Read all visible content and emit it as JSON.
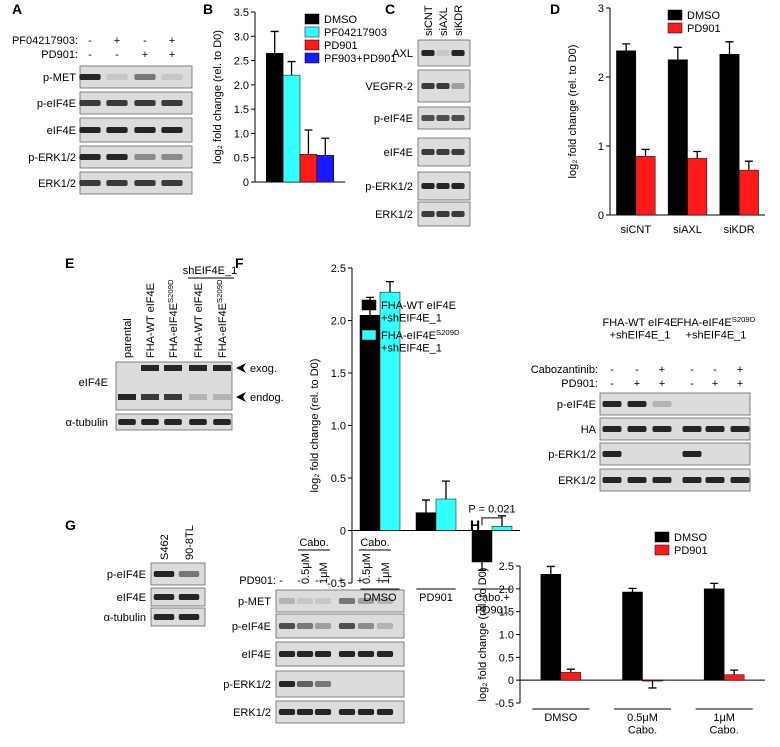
{
  "panel_labels": [
    "A",
    "B",
    "C",
    "D",
    "E",
    "F",
    "G",
    "H"
  ],
  "blot_a": {
    "treatments": [
      {
        "label": "PF04217903:",
        "signs": [
          "-",
          "+",
          "-",
          "+"
        ]
      },
      {
        "label": "PD901:",
        "signs": [
          "-",
          "-",
          "+",
          "+"
        ]
      }
    ],
    "rows": [
      "p-MET",
      "p-eIF4E",
      "eIF4E",
      "p-ERK1/2",
      "ERK1/2"
    ]
  },
  "blot_c": {
    "lanes": [
      "siCNT",
      "siAXL",
      "siKDR"
    ],
    "rows": [
      "AXL",
      "VEGFR-2",
      "p-eIF4E",
      "eIF4E",
      "p-ERK1/2",
      "ERK1/2"
    ]
  },
  "blot_e": {
    "group": "shEIF4E_1",
    "lanes": [
      "parental",
      "FHA-WT eIF4E",
      {
        "text": "FHA-eIF4E",
        "sup": "S209D"
      },
      "FHA-WT eIF4E",
      {
        "text": "FHA-eIF4E",
        "sup": "S209D"
      }
    ],
    "rows": [
      "eIF4E",
      "α-tubulin"
    ],
    "arrows": [
      "exog.",
      "endog."
    ]
  },
  "blot_f": {
    "groups": [
      [
        "FHA-WT eIF4E",
        "+shEIF4E_1"
      ],
      [
        {
          "text": "FHA-eIF4E",
          "sup": "S209D"
        },
        "+shEIF4E_1"
      ]
    ],
    "treatments": [
      {
        "label": "Cabozantinib:",
        "signs": [
          "-",
          "-",
          "+",
          "-",
          "-",
          "+"
        ]
      },
      {
        "label": "PD901:",
        "signs": [
          "-",
          "+",
          "+",
          "-",
          "+",
          "+"
        ]
      }
    ],
    "rows": [
      "p-eIF4E",
      "HA",
      "p-ERK1/2",
      "ERK1/2"
    ]
  },
  "blot_g1": {
    "lanes": [
      "S462",
      "90-8TL"
    ],
    "rows": [
      "p-eIF4E",
      "eIF4E",
      "α-tubulin"
    ]
  },
  "blot_g2": {
    "groups": [
      "Cabo.",
      "Cabo."
    ],
    "doses": [
      "0.5μM",
      "1μM",
      "0.5μM",
      "1μM"
    ],
    "treatment": {
      "label": "PD901:",
      "signs": [
        "-",
        "-",
        "-",
        "+",
        "+",
        "+"
      ]
    },
    "rows": [
      "p-MET",
      "p-eIF4E",
      "eIF4E",
      "p-ERK1/2",
      "ERK1/2"
    ]
  },
  "chart_data": [
    {
      "type": "bar",
      "y_label": "log₂ fold change (rel. to D0)",
      "categories": [
        null
      ],
      "series": [
        {
          "name": "DMSO",
          "color": "#000000",
          "values": [
            2.65
          ],
          "errors": [
            0.45
          ]
        },
        {
          "name": "PF04217903",
          "color": "#33ffff",
          "values": [
            2.2
          ],
          "errors": [
            0.28
          ]
        },
        {
          "name": "PD901",
          "color": "#ff1a1a",
          "values": [
            0.57
          ],
          "errors": [
            0.5
          ]
        },
        {
          "name": "PF903+PD901",
          "color": "#1a1aff",
          "values": [
            0.55
          ],
          "errors": [
            0.35
          ]
        }
      ],
      "ylim": [
        0,
        3.5
      ],
      "yticks": [
        0,
        0.5,
        {
          "value": 1,
          "label": "1.0"
        },
        1.5,
        {
          "value": 2,
          "label": "2.0"
        },
        2.5,
        {
          "value": 3,
          "label": "3.0"
        },
        3.5
      ]
    },
    {
      "type": "bar",
      "y_label": "log₂ fold change (rel. to D0)",
      "categories": [
        "siCNT",
        "siAXL",
        "siKDR"
      ],
      "series": [
        {
          "name": "DMSO",
          "color": "#000000",
          "values": [
            2.38,
            2.25,
            2.33
          ],
          "errors": [
            0.1,
            0.18,
            0.18
          ]
        },
        {
          "name": "PD901",
          "color": "#ff1a1a",
          "values": [
            0.85,
            0.82,
            0.65
          ],
          "errors": [
            0.1,
            0.1,
            0.13
          ]
        }
      ],
      "ylim": [
        0,
        3
      ],
      "yticks": [
        0,
        1,
        2,
        3
      ]
    },
    {
      "type": "bar",
      "y_label": "log₂ fold change (rel. to D0)",
      "categories": [
        "DMSO",
        "PD901",
        [
          "Cabo.+",
          "PD901"
        ]
      ],
      "series": [
        {
          "name": [
            "FHA-WT eIF4E",
            "+shEIF4E_1"
          ],
          "color": "#000000",
          "values": [
            2.05,
            0.17,
            -0.3
          ],
          "errors": [
            0.17,
            0.12,
            0.08
          ]
        },
        {
          "name": [
            {
              "text": "FHA-eIF4E",
              "sup": "S209D"
            },
            "+shEIF4E_1"
          ],
          "color": "#33ffff",
          "values": [
            2.27,
            0.3,
            0.04
          ],
          "errors": [
            0.1,
            0.17,
            0.1
          ]
        }
      ],
      "annotation": "P = 0.021",
      "ylim": [
        -0.5,
        2.5
      ],
      "yticks": [
        -0.5,
        0,
        0.5,
        {
          "value": 1,
          "label": "1.0"
        },
        1.5,
        {
          "value": 2,
          "label": "2.0"
        },
        2.5
      ]
    },
    {
      "type": "bar",
      "y_label": "log₂ fold change (rel. to D0)",
      "categories": [
        "DMSO",
        [
          "0.5μM",
          "Cabo."
        ],
        [
          "1μM",
          "Cabo."
        ]
      ],
      "series": [
        {
          "name": "DMSO",
          "color": "#000000",
          "values": [
            2.32,
            1.93,
            2.0
          ],
          "errors": [
            0.17,
            0.08,
            0.12
          ]
        },
        {
          "name": "PD901",
          "color": "#ff1a1a",
          "values": [
            0.17,
            -0.02,
            0.12
          ],
          "errors": [
            0.07,
            0.15,
            0.1
          ]
        }
      ],
      "ylim": [
        -0.5,
        2.5
      ],
      "yticks": [
        -0.5,
        0,
        0.5,
        {
          "value": 1,
          "label": "1.0"
        },
        1.5,
        {
          "value": 2,
          "label": "2.0"
        },
        2.5
      ]
    }
  ]
}
